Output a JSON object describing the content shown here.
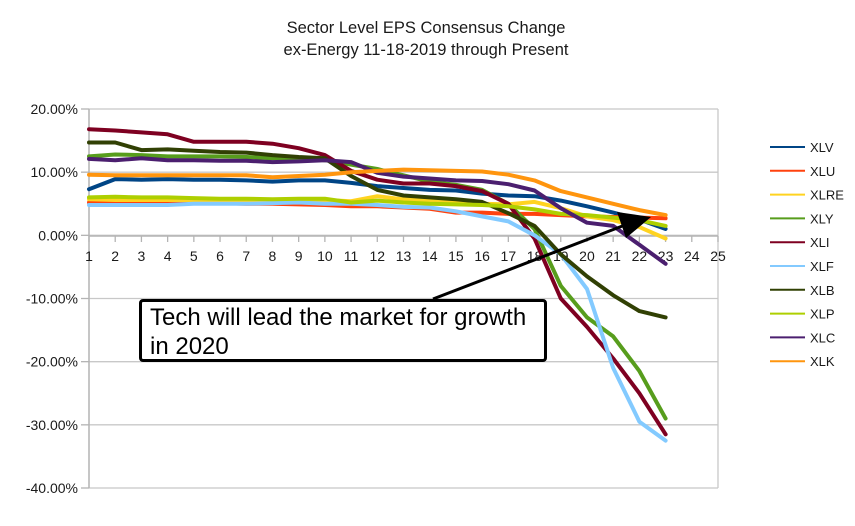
{
  "chart_data": {
    "type": "line",
    "title": "Sector Level EPS Consensus Change",
    "subtitle": "ex-Energy 11-18-2019 through Present",
    "xlabel": "",
    "ylabel": "",
    "x": [
      1,
      2,
      3,
      4,
      5,
      6,
      7,
      8,
      9,
      10,
      11,
      12,
      13,
      14,
      15,
      16,
      17,
      18,
      19,
      20,
      21,
      22,
      23
    ],
    "x_ticks": [
      "1",
      "2",
      "3",
      "4",
      "5",
      "6",
      "7",
      "8",
      "9",
      "10",
      "11",
      "12",
      "13",
      "14",
      "15",
      "16",
      "17",
      "18",
      "19",
      "20",
      "21",
      "22",
      "23",
      "24",
      "25"
    ],
    "xlim": [
      1,
      25
    ],
    "ylim": [
      -40,
      20
    ],
    "y_ticks": [
      20,
      10,
      0,
      -10,
      -20,
      -30,
      -40
    ],
    "y_tick_labels": [
      "20.00%",
      "10.00%",
      "0.00%",
      "-10.00%",
      "-20.00%",
      "-30.00%",
      "-40.00%"
    ],
    "grid": true,
    "legend_position": "right",
    "series": [
      {
        "name": "XLV",
        "color": "#004586",
        "values": [
          7.3,
          8.9,
          8.8,
          8.9,
          8.8,
          8.8,
          8.7,
          8.5,
          8.7,
          8.7,
          8.3,
          7.8,
          7.5,
          7.2,
          7.1,
          6.6,
          6.3,
          6.2,
          5.5,
          4.6,
          3.6,
          2.5,
          1.0
        ]
      },
      {
        "name": "XLU",
        "color": "#ff420e",
        "values": [
          5.2,
          5.1,
          5.1,
          5.1,
          5.1,
          5.1,
          5.0,
          5.0,
          4.9,
          4.8,
          4.6,
          4.6,
          4.4,
          4.2,
          3.6,
          3.6,
          3.4,
          3.4,
          3.2,
          3.0,
          2.9,
          2.8,
          2.7
        ]
      },
      {
        "name": "XLRE",
        "color": "#ffd320",
        "values": [
          5.7,
          5.6,
          5.6,
          5.6,
          5.6,
          5.6,
          5.6,
          5.6,
          5.6,
          5.6,
          5.4,
          6.2,
          5.7,
          5.5,
          5.3,
          5.0,
          4.9,
          5.3,
          4.3,
          3.0,
          2.4,
          1.3,
          -0.5
        ]
      },
      {
        "name": "XLY",
        "color": "#579d1c",
        "values": [
          12.5,
          12.8,
          12.7,
          12.5,
          12.5,
          12.5,
          12.4,
          12.2,
          12.2,
          11.9,
          11.2,
          10.5,
          9.5,
          8.5,
          8.0,
          7.2,
          5.0,
          1.0,
          -8.0,
          -13.0,
          -16.0,
          -21.5,
          -29.0
        ]
      },
      {
        "name": "XLI",
        "color": "#7e0021",
        "values": [
          16.8,
          16.6,
          16.3,
          16.0,
          14.8,
          14.8,
          14.8,
          14.5,
          13.8,
          12.7,
          10.2,
          8.8,
          8.2,
          8.2,
          7.8,
          7.0,
          5.0,
          -0.5,
          -10.0,
          -14.5,
          -19.5,
          -25.0,
          -31.5
        ]
      },
      {
        "name": "XLF",
        "color": "#83caff",
        "values": [
          4.8,
          4.8,
          4.8,
          4.8,
          5.0,
          5.0,
          5.0,
          5.1,
          5.2,
          5.0,
          5.0,
          4.8,
          4.5,
          4.4,
          3.8,
          3.0,
          2.2,
          0.0,
          -3.0,
          -8.5,
          -21.0,
          -29.5,
          -32.5
        ]
      },
      {
        "name": "XLB",
        "color": "#314004",
        "values": [
          14.7,
          14.7,
          13.5,
          13.6,
          13.4,
          13.2,
          13.1,
          12.7,
          12.4,
          12.2,
          9.4,
          7.2,
          6.3,
          6.0,
          5.7,
          5.3,
          3.5,
          1.5,
          -3.0,
          -6.5,
          -9.5,
          -12.0,
          -13.0
        ]
      },
      {
        "name": "XLP",
        "color": "#aecf00",
        "values": [
          6.0,
          6.1,
          6.0,
          6.0,
          5.9,
          5.8,
          5.8,
          5.7,
          5.8,
          5.8,
          5.2,
          5.5,
          5.2,
          5.0,
          4.9,
          4.8,
          4.6,
          4.1,
          3.4,
          3.2,
          2.8,
          2.4,
          1.5
        ]
      },
      {
        "name": "XLC",
        "color": "#4b1f6f",
        "values": [
          12.1,
          11.9,
          12.2,
          11.9,
          11.9,
          11.8,
          11.8,
          11.6,
          11.7,
          11.9,
          11.6,
          9.9,
          9.3,
          9.0,
          8.7,
          8.6,
          8.1,
          7.1,
          4.3,
          2.0,
          1.5,
          -1.5,
          -4.5
        ]
      },
      {
        "name": "XLK",
        "color": "#ff950e",
        "values": [
          9.6,
          9.5,
          9.5,
          9.5,
          9.5,
          9.5,
          9.5,
          9.2,
          9.4,
          9.6,
          10.0,
          10.2,
          10.4,
          10.3,
          10.2,
          10.1,
          9.6,
          8.7,
          7.0,
          6.0,
          5.0,
          4.0,
          3.2
        ]
      }
    ],
    "annotation": {
      "text_line1": "Tech will lead the market for growth",
      "text_line2": "in 2020",
      "arrow_target": "XLK near x=22"
    }
  }
}
